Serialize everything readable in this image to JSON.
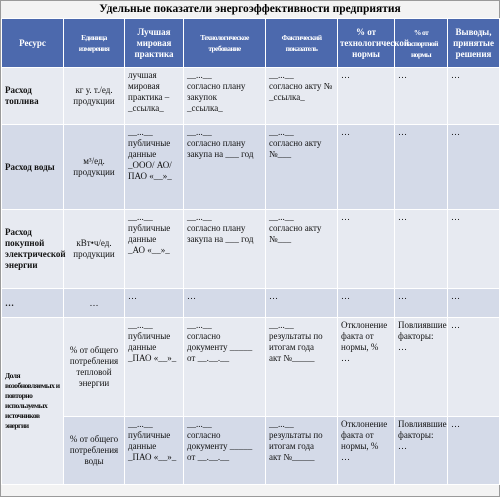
{
  "title": "Удельные показатели энергоэффективности предприятия",
  "headers": [
    "Ресурс",
    "Единица измерения",
    "Лучшая мировая практика",
    "Технологическое требование",
    "Фактический показатель",
    "% от технологической нормы",
    "% от паспортной нормы",
    "Выводы, принятые решения"
  ],
  "rows": [
    {
      "resource": "Расход топлива",
      "unit": "кг у. т./ед. продукции",
      "best": "лучшая мировая практика – _ссылка_",
      "tech": "__...__\nсогласно плану закупок\n_ссылка_",
      "fact": "__...__\nсогласно акту № _ссылка_",
      "pct_tech": "…",
      "pct_pass": "…",
      "conclusions": "…"
    },
    {
      "resource": "Расход воды",
      "unit": "м³/ед. продукции",
      "best": "__...__\nпубличные данные\n_ООО/ АО/ ПАО «__»_",
      "tech": "__...__\nсогласно плану закупа на ___ год",
      "fact": "__...__\nсогласно акту №___",
      "pct_tech": "…",
      "pct_pass": "…",
      "conclusions": "…"
    },
    {
      "resource": "Расход покупной электрической энергии",
      "unit": "кВт•ч/ед. продукции",
      "best": "__...__\nпубличные данные\n_АО «__»_",
      "tech": "__...__\nсогласно плану закупа на ___ год",
      "fact": "__...__\nсогласно акту №___",
      "pct_tech": "…",
      "pct_pass": "…",
      "conclusions": "…"
    },
    {
      "resource": "…",
      "unit": "…",
      "best": "…",
      "tech": "…",
      "fact": "…",
      "pct_tech": "…",
      "pct_pass": "…",
      "conclusions": "…"
    },
    {
      "resource": "Доля возобновляемых и повторно используемых источников энергии",
      "unit": "% от общего потребления тепловой энергии",
      "best": "__...__\nпубличные данные\n_ПАО «__»_",
      "tech": "__...__\nсогласно документу _____\nот __.__.__",
      "fact": "__...__\nрезультаты по итогам года\nакт №_____",
      "pct_tech": "Отклонение факта от нормы, %\n…",
      "pct_pass": "Повлиявшие факторы:\n…",
      "conclusions": "…"
    },
    {
      "resource": "",
      "unit": "% от общего потребления воды",
      "best": "__...__\nпубличные данные\n_ПАО «__»_",
      "tech": "__...__\nсогласно документу _____\nот __.__.__",
      "fact": "__...__\nрезультаты по итогам года\nакт №_____",
      "pct_tech": "Отклонение факта от нормы, %\n…",
      "pct_pass": "Повлиявшие факторы:\n…",
      "conclusions": "…"
    }
  ]
}
